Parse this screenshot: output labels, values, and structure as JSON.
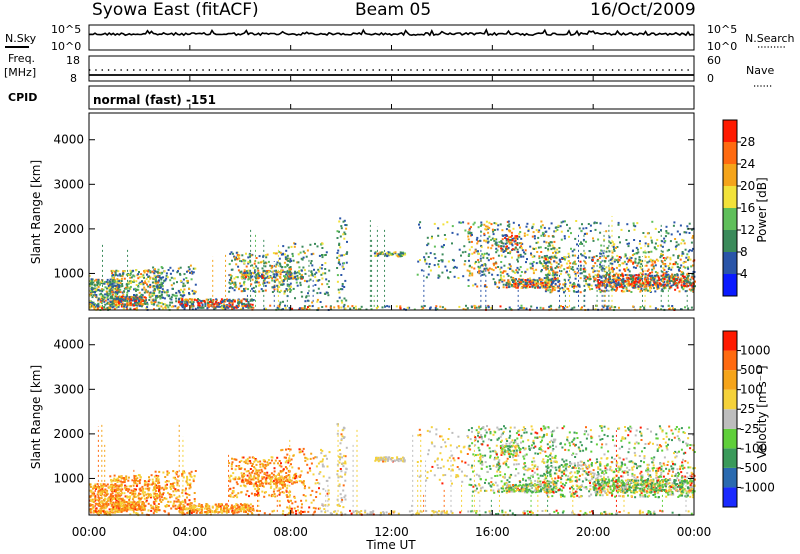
{
  "header": {
    "title": "Syowa East (fitACF)",
    "beam": "Beam 05",
    "date": "16/Oct/2009"
  },
  "top_panels": {
    "nsky_label": "N.Sky",
    "nsky_ticks": [
      "10^5",
      "10^0"
    ],
    "nsearch_label": "N.Search",
    "nsearch_ticks": [
      "10^5",
      "10^0"
    ],
    "freq_label": "Freq.",
    "freq_unit": "[MHz]",
    "freq_ticks": [
      "18",
      "8"
    ],
    "nave_label": "Nave",
    "nave_ticks": [
      "60",
      "0"
    ],
    "cpid_label": "CPID",
    "cpid_value": "normal (fast) -151"
  },
  "chart_data": [
    {
      "type": "heatmap",
      "panel": "power",
      "ylabel": "Slant Range [km]",
      "xlabel": "Time UT",
      "y_ticks": [
        "1000",
        "2000",
        "3000",
        "4000"
      ],
      "ylim": [
        180,
        4600
      ],
      "xlim": [
        0,
        24
      ],
      "colorbar_label": "Power [dB]",
      "colorbar_ticks": [
        "4",
        "8",
        "12",
        "16",
        "20",
        "24",
        "28"
      ],
      "colorbar_colors": [
        "#0a1aff",
        "#2a55a8",
        "#3a8a5a",
        "#5fbf5a",
        "#f2e23a",
        "#f5a41a",
        "#ff6a10",
        "#ff1a00"
      ]
    },
    {
      "type": "heatmap",
      "panel": "velocity",
      "ylabel": "Slant Range [km]",
      "xlabel": "Time UT",
      "x_ticks": [
        "00:00",
        "04:00",
        "08:00",
        "12:00",
        "16:00",
        "20:00",
        "00:00"
      ],
      "y_ticks": [
        "1000",
        "2000",
        "3000",
        "4000"
      ],
      "ylim": [
        180,
        4600
      ],
      "xlim": [
        0,
        24
      ],
      "colorbar_label": "Velocity [m s⁻¹]",
      "colorbar_ticks": [
        "1000",
        "500",
        "100",
        "25",
        "-25",
        "-100",
        "-500",
        "-1000"
      ],
      "colorbar_colors": [
        "#1a2aff",
        "#2a6ab0",
        "#3a9a5a",
        "#5fcf3a",
        "#bdbdbd",
        "#f5d23a",
        "#f5a41a",
        "#ff6a10",
        "#ff1a00"
      ]
    }
  ]
}
